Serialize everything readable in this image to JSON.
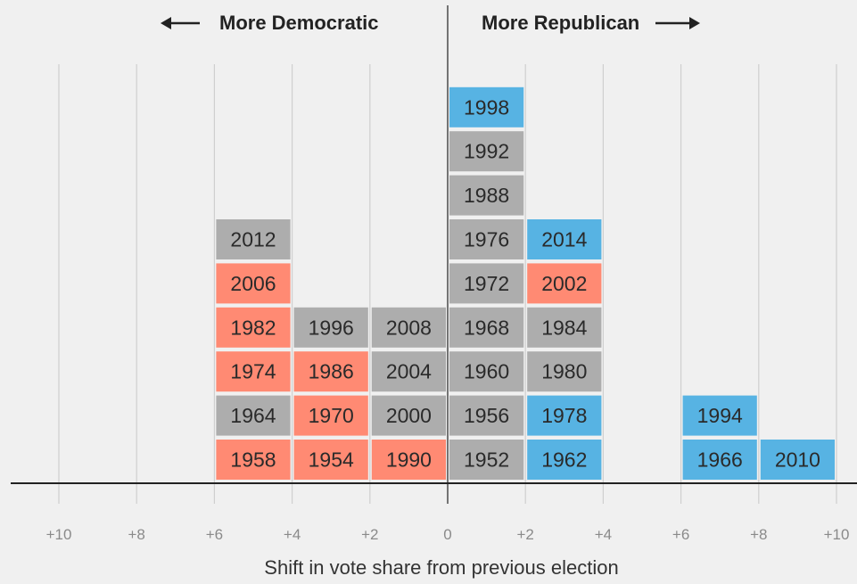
{
  "header": {
    "left_label": "More Democratic",
    "right_label": "More Republican"
  },
  "colors": {
    "republican_gain": "#57b3e3",
    "democratic_gain": "#ff8a73",
    "neutral": "#adadad",
    "background": "#f0f0f0"
  },
  "chart_data": {
    "type": "bar",
    "xlabel": "Shift in vote share from previous election",
    "ylabel": "",
    "xlim": [
      -10,
      10
    ],
    "x_ticks": [
      -10,
      -8,
      -6,
      -4,
      -2,
      0,
      2,
      4,
      6,
      8,
      10
    ],
    "x_tick_labels": [
      "+10",
      "+8",
      "+6",
      "+4",
      "+2",
      "0",
      "+2",
      "+4",
      "+6",
      "+8",
      "+10"
    ],
    "bins": [
      {
        "range": [
          -6,
          -4
        ],
        "years": [
          {
            "label": "1958",
            "party": "democratic"
          },
          {
            "label": "1964",
            "party": "neutral"
          },
          {
            "label": "1974",
            "party": "democratic"
          },
          {
            "label": "1982",
            "party": "democratic"
          },
          {
            "label": "2006",
            "party": "democratic"
          },
          {
            "label": "2012",
            "party": "neutral"
          }
        ]
      },
      {
        "range": [
          -4,
          -2
        ],
        "years": [
          {
            "label": "1954",
            "party": "democratic"
          },
          {
            "label": "1970",
            "party": "democratic"
          },
          {
            "label": "1986",
            "party": "democratic"
          },
          {
            "label": "1996",
            "party": "neutral"
          }
        ]
      },
      {
        "range": [
          -2,
          0
        ],
        "years": [
          {
            "label": "1990",
            "party": "democratic"
          },
          {
            "label": "2000",
            "party": "neutral"
          },
          {
            "label": "2004",
            "party": "neutral"
          },
          {
            "label": "2008",
            "party": "neutral"
          }
        ]
      },
      {
        "range": [
          0,
          2
        ],
        "years": [
          {
            "label": "1952",
            "party": "neutral"
          },
          {
            "label": "1956",
            "party": "neutral"
          },
          {
            "label": "1960",
            "party": "neutral"
          },
          {
            "label": "1968",
            "party": "neutral"
          },
          {
            "label": "1972",
            "party": "neutral"
          },
          {
            "label": "1976",
            "party": "neutral"
          },
          {
            "label": "1988",
            "party": "neutral"
          },
          {
            "label": "1992",
            "party": "neutral"
          },
          {
            "label": "1998",
            "party": "republican"
          }
        ]
      },
      {
        "range": [
          2,
          4
        ],
        "years": [
          {
            "label": "1962",
            "party": "republican"
          },
          {
            "label": "1978",
            "party": "republican"
          },
          {
            "label": "1980",
            "party": "neutral"
          },
          {
            "label": "1984",
            "party": "neutral"
          },
          {
            "label": "2002",
            "party": "democratic"
          },
          {
            "label": "2014",
            "party": "republican"
          }
        ]
      },
      {
        "range": [
          6,
          8
        ],
        "years": [
          {
            "label": "1966",
            "party": "republican"
          },
          {
            "label": "1994",
            "party": "republican"
          }
        ]
      },
      {
        "range": [
          8,
          10
        ],
        "years": [
          {
            "label": "2010",
            "party": "republican"
          }
        ]
      }
    ]
  }
}
